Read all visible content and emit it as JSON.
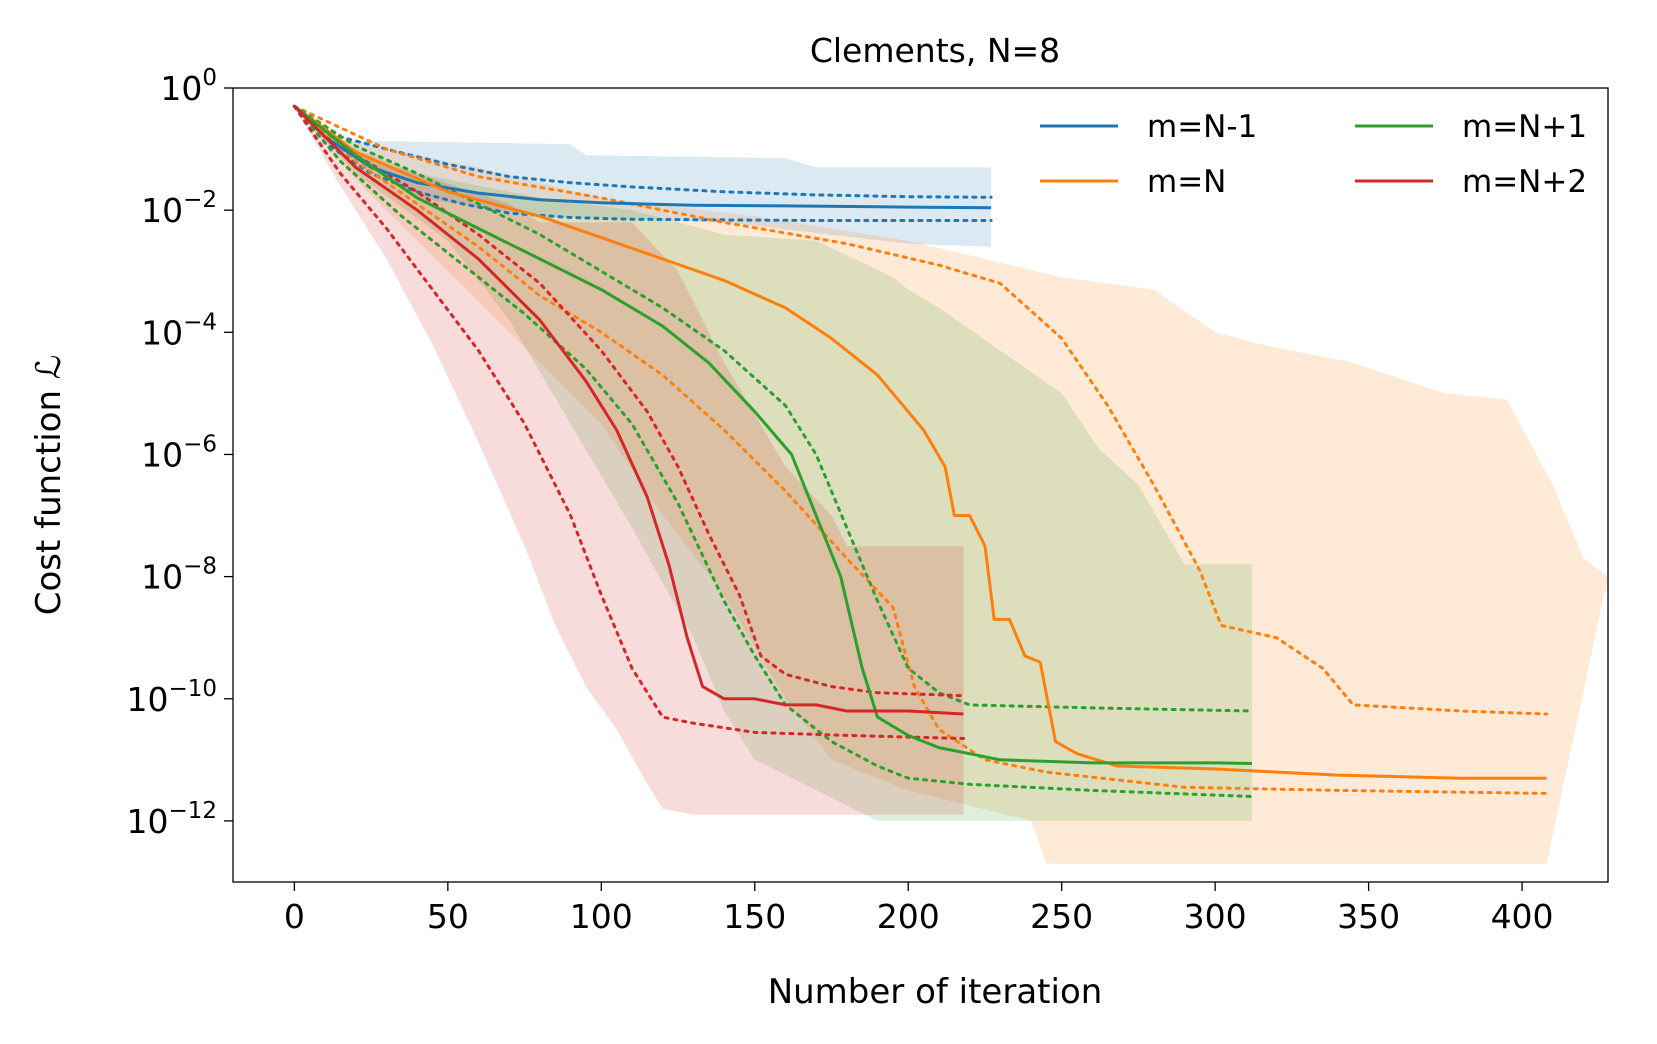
{
  "chart_data": {
    "type": "line",
    "title": "Clements, N=8",
    "xlabel": "Number of iteration",
    "ylabel": "Cost function ℒ",
    "xlim": [
      -20,
      428
    ],
    "ylim_log10": [
      -13,
      0
    ],
    "yscale": "log",
    "grid": false,
    "legend_position": "top-right",
    "legend_columns": 2,
    "x_ticks": [
      0,
      50,
      100,
      150,
      200,
      250,
      300,
      350,
      400
    ],
    "y_ticks": [
      {
        "exp": 0,
        "base": "10",
        "sup": "0"
      },
      {
        "exp": -2,
        "base": "10",
        "sup": "−2"
      },
      {
        "exp": -4,
        "base": "10",
        "sup": "−4"
      },
      {
        "exp": -6,
        "base": "10",
        "sup": "−6"
      },
      {
        "exp": -8,
        "base": "10",
        "sup": "−8"
      },
      {
        "exp": -10,
        "base": "10",
        "sup": "−10"
      },
      {
        "exp": -12,
        "base": "10",
        "sup": "−12"
      }
    ],
    "series": [
      {
        "name": "m=N-1",
        "color": "#1f77b4",
        "mean": [
          [
            0,
            -0.3
          ],
          [
            10,
            -0.8
          ],
          [
            25,
            -1.3
          ],
          [
            40,
            -1.55
          ],
          [
            60,
            -1.72
          ],
          [
            80,
            -1.83
          ],
          [
            100,
            -1.88
          ],
          [
            130,
            -1.92
          ],
          [
            160,
            -1.93
          ],
          [
            200,
            -1.95
          ],
          [
            227,
            -1.96
          ]
        ],
        "dotted_upper": [
          [
            0,
            -0.3
          ],
          [
            15,
            -0.8
          ],
          [
            30,
            -1.0
          ],
          [
            50,
            -1.25
          ],
          [
            70,
            -1.45
          ],
          [
            90,
            -1.55
          ],
          [
            110,
            -1.62
          ],
          [
            140,
            -1.7
          ],
          [
            170,
            -1.75
          ],
          [
            200,
            -1.78
          ],
          [
            227,
            -1.79
          ]
        ],
        "dotted_lower": [
          [
            0,
            -0.3
          ],
          [
            10,
            -0.9
          ],
          [
            25,
            -1.4
          ],
          [
            40,
            -1.7
          ],
          [
            55,
            -1.9
          ],
          [
            70,
            -2.05
          ],
          [
            90,
            -2.12
          ],
          [
            110,
            -2.15
          ],
          [
            140,
            -2.16
          ],
          [
            170,
            -2.17
          ],
          [
            227,
            -2.17
          ]
        ],
        "band_upper": [
          [
            0,
            -0.3
          ],
          [
            10,
            -0.87
          ],
          [
            30,
            -0.87
          ],
          [
            90,
            -0.92
          ],
          [
            95,
            -1.1
          ],
          [
            160,
            -1.15
          ],
          [
            170,
            -1.3
          ],
          [
            227,
            -1.3
          ]
        ],
        "band_lower": [
          [
            0,
            -0.3
          ],
          [
            15,
            -1.0
          ],
          [
            40,
            -1.8
          ],
          [
            80,
            -2.1
          ],
          [
            140,
            -2.2
          ],
          [
            200,
            -2.55
          ],
          [
            227,
            -2.6
          ]
        ]
      },
      {
        "name": "m=N",
        "color": "#ff7f0e",
        "mean": [
          [
            0,
            -0.3
          ],
          [
            20,
            -1.05
          ],
          [
            50,
            -1.7
          ],
          [
            80,
            -2.1
          ],
          [
            100,
            -2.45
          ],
          [
            120,
            -2.8
          ],
          [
            140,
            -3.15
          ],
          [
            160,
            -3.6
          ],
          [
            175,
            -4.1
          ],
          [
            190,
            -4.7
          ],
          [
            205,
            -5.6
          ],
          [
            212,
            -6.2
          ],
          [
            215,
            -7.0
          ],
          [
            220,
            -7.0
          ],
          [
            225,
            -7.5
          ],
          [
            228,
            -8.7
          ],
          [
            233,
            -8.7
          ],
          [
            238,
            -9.3
          ],
          [
            243,
            -9.4
          ],
          [
            248,
            -10.7
          ],
          [
            255,
            -10.9
          ],
          [
            268,
            -11.1
          ],
          [
            300,
            -11.15
          ],
          [
            340,
            -11.25
          ],
          [
            380,
            -11.3
          ],
          [
            408,
            -11.3
          ]
        ],
        "dotted_upper": [
          [
            0,
            -0.3
          ],
          [
            30,
            -1.0
          ],
          [
            60,
            -1.45
          ],
          [
            100,
            -1.8
          ],
          [
            140,
            -2.2
          ],
          [
            180,
            -2.55
          ],
          [
            210,
            -2.9
          ],
          [
            230,
            -3.2
          ],
          [
            250,
            -4.1
          ],
          [
            265,
            -5.2
          ],
          [
            280,
            -6.5
          ],
          [
            295,
            -7.9
          ],
          [
            302,
            -8.8
          ],
          [
            320,
            -9.0
          ],
          [
            335,
            -9.5
          ],
          [
            345,
            -10.1
          ],
          [
            380,
            -10.2
          ],
          [
            408,
            -10.25
          ]
        ],
        "dotted_lower": [
          [
            0,
            -0.3
          ],
          [
            20,
            -1.2
          ],
          [
            40,
            -1.9
          ],
          [
            60,
            -2.6
          ],
          [
            80,
            -3.4
          ],
          [
            100,
            -4.0
          ],
          [
            120,
            -4.7
          ],
          [
            140,
            -5.6
          ],
          [
            160,
            -6.6
          ],
          [
            180,
            -7.7
          ],
          [
            195,
            -8.5
          ],
          [
            202,
            -9.8
          ],
          [
            210,
            -10.5
          ],
          [
            225,
            -11.0
          ],
          [
            245,
            -11.2
          ],
          [
            290,
            -11.45
          ],
          [
            340,
            -11.5
          ],
          [
            408,
            -11.55
          ]
        ],
        "band_upper": [
          [
            0,
            -0.3
          ],
          [
            20,
            -0.9
          ],
          [
            60,
            -1.3
          ],
          [
            100,
            -1.8
          ],
          [
            150,
            -2.1
          ],
          [
            200,
            -2.5
          ],
          [
            250,
            -3.1
          ],
          [
            280,
            -3.3
          ],
          [
            300,
            -4.0
          ],
          [
            315,
            -4.2
          ],
          [
            345,
            -4.5
          ],
          [
            375,
            -5.0
          ],
          [
            395,
            -5.1
          ],
          [
            410,
            -6.5
          ],
          [
            420,
            -7.7
          ],
          [
            428,
            -8.0
          ]
        ],
        "band_lower": [
          [
            0,
            -0.3
          ],
          [
            20,
            -1.5
          ],
          [
            50,
            -3.0
          ],
          [
            80,
            -4.5
          ],
          [
            100,
            -5.5
          ],
          [
            120,
            -7.0
          ],
          [
            140,
            -8.3
          ],
          [
            160,
            -10.0
          ],
          [
            175,
            -11.0
          ],
          [
            200,
            -11.5
          ],
          [
            240,
            -12.0
          ],
          [
            245,
            -12.7
          ],
          [
            408,
            -12.7
          ]
        ]
      },
      {
        "name": "m=N+1",
        "color": "#2ca02c",
        "mean": [
          [
            0,
            -0.3
          ],
          [
            20,
            -1.1
          ],
          [
            40,
            -1.8
          ],
          [
            60,
            -2.3
          ],
          [
            80,
            -2.8
          ],
          [
            100,
            -3.3
          ],
          [
            120,
            -3.9
          ],
          [
            135,
            -4.5
          ],
          [
            150,
            -5.3
          ],
          [
            162,
            -6.0
          ],
          [
            170,
            -7.0
          ],
          [
            178,
            -8.0
          ],
          [
            185,
            -9.5
          ],
          [
            190,
            -10.3
          ],
          [
            200,
            -10.6
          ],
          [
            210,
            -10.8
          ],
          [
            220,
            -10.9
          ],
          [
            230,
            -11.0
          ],
          [
            260,
            -11.05
          ],
          [
            300,
            -11.05
          ],
          [
            312,
            -11.06
          ]
        ],
        "dotted_upper": [
          [
            0,
            -0.3
          ],
          [
            20,
            -0.95
          ],
          [
            40,
            -1.4
          ],
          [
            60,
            -1.9
          ],
          [
            80,
            -2.4
          ],
          [
            100,
            -3.0
          ],
          [
            120,
            -3.6
          ],
          [
            140,
            -4.3
          ],
          [
            160,
            -5.2
          ],
          [
            170,
            -6.0
          ],
          [
            180,
            -7.2
          ],
          [
            190,
            -8.4
          ],
          [
            200,
            -9.5
          ],
          [
            210,
            -9.9
          ],
          [
            220,
            -10.1
          ],
          [
            260,
            -10.15
          ],
          [
            312,
            -10.2
          ]
        ],
        "dotted_lower": [
          [
            0,
            -0.3
          ],
          [
            15,
            -1.2
          ],
          [
            35,
            -2.1
          ],
          [
            55,
            -2.9
          ],
          [
            75,
            -3.7
          ],
          [
            95,
            -4.6
          ],
          [
            110,
            -5.5
          ],
          [
            125,
            -6.8
          ],
          [
            140,
            -8.4
          ],
          [
            150,
            -9.3
          ],
          [
            160,
            -10.1
          ],
          [
            175,
            -10.7
          ],
          [
            190,
            -11.1
          ],
          [
            200,
            -11.3
          ],
          [
            220,
            -11.4
          ],
          [
            260,
            -11.5
          ],
          [
            312,
            -11.6
          ]
        ],
        "band_upper": [
          [
            0,
            -0.3
          ],
          [
            20,
            -1.1
          ],
          [
            40,
            -1.4
          ],
          [
            80,
            -1.8
          ],
          [
            110,
            -2.0
          ],
          [
            140,
            -2.4
          ],
          [
            170,
            -2.5
          ],
          [
            195,
            -3.1
          ],
          [
            200,
            -3.3
          ],
          [
            210,
            -3.6
          ],
          [
            230,
            -4.3
          ],
          [
            250,
            -5.0
          ],
          [
            262,
            -5.9
          ],
          [
            275,
            -6.5
          ],
          [
            290,
            -7.8
          ],
          [
            312,
            -7.8
          ]
        ],
        "band_lower": [
          [
            0,
            -0.3
          ],
          [
            20,
            -1.4
          ],
          [
            50,
            -2.5
          ],
          [
            70,
            -3.8
          ],
          [
            90,
            -5.5
          ],
          [
            110,
            -7.2
          ],
          [
            130,
            -9.0
          ],
          [
            140,
            -10.2
          ],
          [
            150,
            -11.0
          ],
          [
            170,
            -11.5
          ],
          [
            190,
            -12.0
          ],
          [
            312,
            -12.0
          ]
        ]
      },
      {
        "name": "m=N+2",
        "color": "#d62728",
        "mean": [
          [
            0,
            -0.3
          ],
          [
            20,
            -1.3
          ],
          [
            40,
            -2.0
          ],
          [
            60,
            -2.8
          ],
          [
            80,
            -3.8
          ],
          [
            95,
            -4.8
          ],
          [
            105,
            -5.6
          ],
          [
            115,
            -6.7
          ],
          [
            122,
            -7.8
          ],
          [
            128,
            -9.0
          ],
          [
            133,
            -9.8
          ],
          [
            140,
            -10.0
          ],
          [
            150,
            -10.0
          ],
          [
            160,
            -10.1
          ],
          [
            170,
            -10.1
          ],
          [
            180,
            -10.2
          ],
          [
            200,
            -10.2
          ],
          [
            218,
            -10.25
          ]
        ],
        "dotted_upper": [
          [
            0,
            -0.3
          ],
          [
            20,
            -1.1
          ],
          [
            40,
            -1.7
          ],
          [
            60,
            -2.4
          ],
          [
            80,
            -3.2
          ],
          [
            100,
            -4.3
          ],
          [
            115,
            -5.3
          ],
          [
            125,
            -6.2
          ],
          [
            135,
            -7.3
          ],
          [
            145,
            -8.3
          ],
          [
            152,
            -9.3
          ],
          [
            160,
            -9.6
          ],
          [
            175,
            -9.8
          ],
          [
            190,
            -9.9
          ],
          [
            218,
            -9.95
          ]
        ],
        "dotted_lower": [
          [
            0,
            -0.3
          ],
          [
            15,
            -1.4
          ],
          [
            30,
            -2.3
          ],
          [
            45,
            -3.3
          ],
          [
            60,
            -4.3
          ],
          [
            75,
            -5.5
          ],
          [
            90,
            -7.0
          ],
          [
            100,
            -8.3
          ],
          [
            110,
            -9.5
          ],
          [
            120,
            -10.3
          ],
          [
            130,
            -10.4
          ],
          [
            150,
            -10.55
          ],
          [
            180,
            -10.6
          ],
          [
            218,
            -10.65
          ]
        ],
        "band_upper": [
          [
            0,
            -0.3
          ],
          [
            15,
            -0.9
          ],
          [
            40,
            -1.4
          ],
          [
            70,
            -1.9
          ],
          [
            80,
            -2.2
          ],
          [
            110,
            -2.2
          ],
          [
            125,
            -3.0
          ],
          [
            140,
            -4.5
          ],
          [
            160,
            -6.2
          ],
          [
            175,
            -7.0
          ],
          [
            180,
            -7.5
          ],
          [
            218,
            -7.5
          ]
        ],
        "band_lower": [
          [
            0,
            -0.3
          ],
          [
            15,
            -1.6
          ],
          [
            30,
            -2.8
          ],
          [
            45,
            -4.2
          ],
          [
            60,
            -5.8
          ],
          [
            75,
            -7.5
          ],
          [
            85,
            -8.8
          ],
          [
            95,
            -9.8
          ],
          [
            105,
            -10.5
          ],
          [
            115,
            -11.4
          ],
          [
            120,
            -11.8
          ],
          [
            130,
            -11.9
          ],
          [
            218,
            -11.9
          ]
        ]
      }
    ]
  }
}
